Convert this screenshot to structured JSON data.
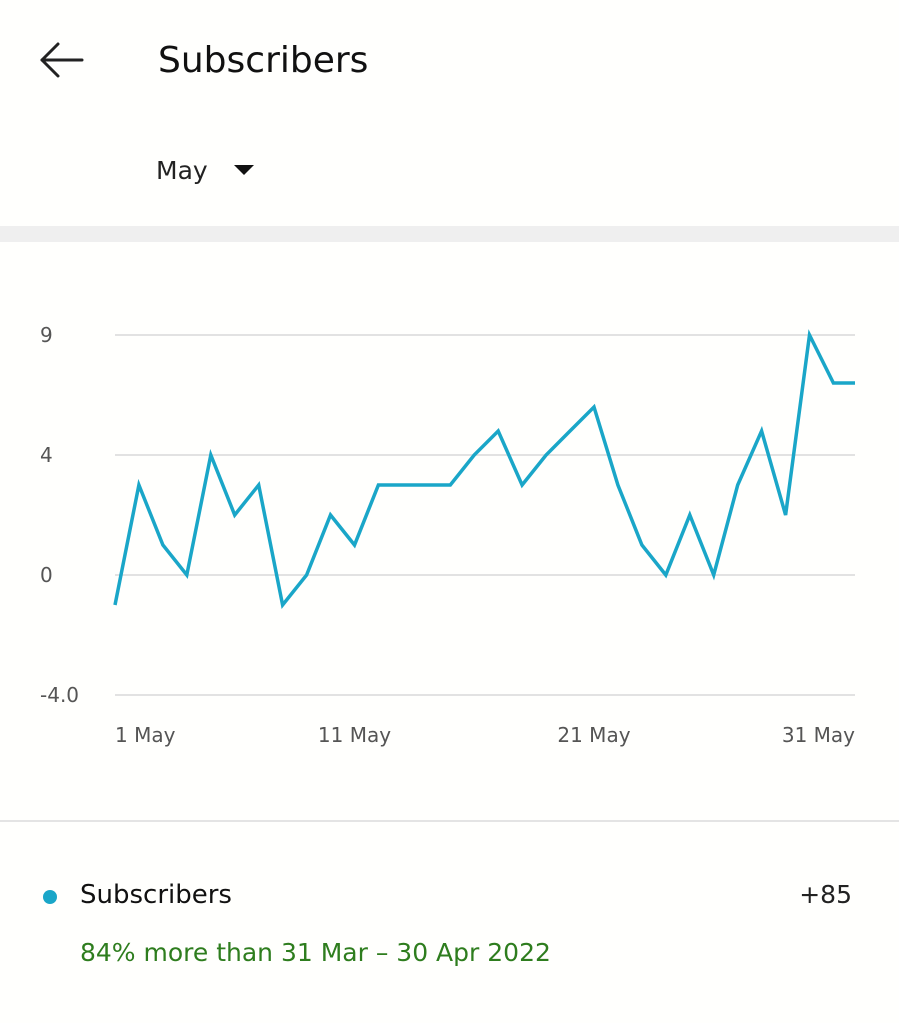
{
  "header": {
    "back_icon": "arrow-left-icon",
    "title": "Subscribers"
  },
  "period_selector": {
    "label": "May",
    "caret_icon": "caret-down-icon",
    "highlight_color": "#fbf24a"
  },
  "chart_data": {
    "type": "line",
    "y_ticks": [
      "9",
      "4",
      "0",
      "-4.0"
    ],
    "y_tick_values": [
      9,
      4,
      0,
      -4
    ],
    "ylim": [
      -4,
      9
    ],
    "x_ticks": [
      "1 May",
      "11 May",
      "21 May",
      "31 May"
    ],
    "x_tick_days": [
      1,
      11,
      21,
      31
    ],
    "xlim": [
      1,
      31.9
    ],
    "grid": true,
    "series": [
      {
        "color": "#1aa6c8",
        "x": [
          1,
          2,
          3,
          4,
          5,
          6,
          7,
          8,
          9,
          10,
          11,
          12,
          13,
          14,
          15,
          16,
          17,
          18,
          19,
          20,
          21,
          22,
          23,
          24,
          25,
          26,
          27,
          28,
          29,
          30,
          31,
          31.9
        ],
        "values": [
          -1,
          3,
          1,
          0,
          4,
          2,
          3,
          -1,
          0,
          2,
          1,
          3,
          3,
          3,
          3,
          4,
          5,
          3,
          4,
          5,
          6,
          3,
          1,
          0,
          2,
          0,
          3,
          5,
          2,
          9,
          7,
          7
        ]
      }
    ]
  },
  "legend": {
    "dot_color": "#1aa6c8",
    "label": "Subscribers",
    "total": "+85",
    "comparison": "84% more than 31 Mar – 30 Apr 2022",
    "comparison_color": "#2e7d1e"
  }
}
